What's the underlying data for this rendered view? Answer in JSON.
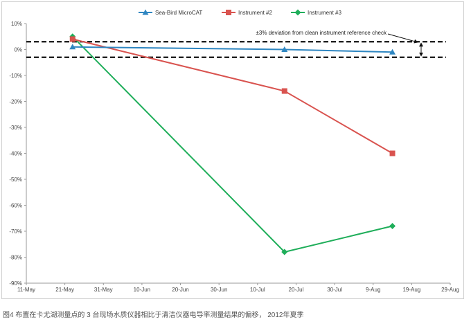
{
  "chart_data": {
    "type": "line",
    "title": "",
    "xlabel": "",
    "ylabel": "",
    "x_ticks": [
      "11-May",
      "21-May",
      "31-May",
      "10-Jun",
      "20-Jun",
      "30-Jun",
      "10-Jul",
      "20-Jul",
      "30-Jul",
      "9-Aug",
      "19-Aug",
      "29-Aug"
    ],
    "x_range": [
      "2012-05-11",
      "2012-08-29"
    ],
    "y_ticks": [
      "10%",
      "0%",
      "-10%",
      "-20%",
      "-30%",
      "-40%",
      "-50%",
      "-60%",
      "-70%",
      "-80%",
      "-90%"
    ],
    "ylim": [
      -90,
      10
    ],
    "y_unit": "%",
    "grid": false,
    "legend_position": "top",
    "series": [
      {
        "name": "Sea-Bird MicroCAT",
        "color": "#2e86c1",
        "marker": "triangle",
        "points": [
          {
            "x": "2012-05-23",
            "y": 1
          },
          {
            "x": "2012-07-17",
            "y": 0
          },
          {
            "x": "2012-08-14",
            "y": -1
          }
        ]
      },
      {
        "name": "Instrument #2",
        "color": "#d9534f",
        "marker": "square",
        "points": [
          {
            "x": "2012-05-23",
            "y": 4
          },
          {
            "x": "2012-07-17",
            "y": -16
          },
          {
            "x": "2012-08-14",
            "y": -40
          }
        ]
      },
      {
        "name": "Instrument #3",
        "color": "#1fae5a",
        "marker": "diamond",
        "points": [
          {
            "x": "2012-05-23",
            "y": 5
          },
          {
            "x": "2012-07-17",
            "y": -78
          },
          {
            "x": "2012-08-14",
            "y": -68
          }
        ]
      }
    ],
    "reference_band": {
      "upper": 3,
      "lower": -3
    },
    "annotation": "±3% deviation from clean instrument reference check"
  },
  "caption": "图4 布置在卡尤湖测量点的 3 台现场水质仪器相比于清洁仪器电导率测量结果的偏移， 2012年夏季"
}
